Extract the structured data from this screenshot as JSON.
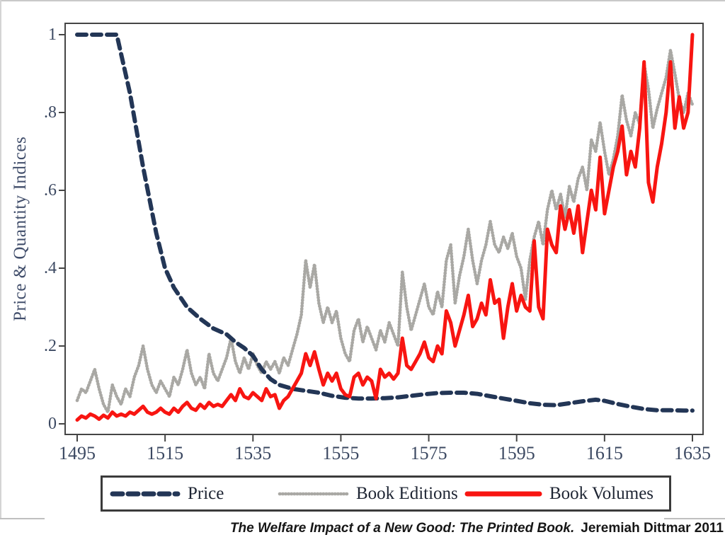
{
  "page": {
    "caption": {
      "title": "The Welfare Impact of a New Good: The Printed Book.",
      "credit": "Jeremiah Dittmar 2011"
    }
  },
  "chart_data": {
    "type": "line",
    "title": "",
    "xlabel": "",
    "ylabel": "Price & Quantity Indices",
    "x_ticks": [
      1495,
      1515,
      1535,
      1555,
      1575,
      1595,
      1615,
      1635
    ],
    "x_tick_labels": [
      "1495",
      "1515",
      "1535",
      "1555",
      "1575",
      "1595",
      "1615",
      "1635"
    ],
    "y_ticks": [
      0,
      0.2,
      0.4,
      0.6,
      0.8,
      1
    ],
    "y_tick_labels": [
      "0",
      ".2",
      ".4",
      ".6",
      ".8",
      "1"
    ],
    "xlim": [
      1495,
      1635
    ],
    "ylim": [
      0,
      1
    ],
    "grid": false,
    "legend_position": "bottom",
    "colors": {
      "price": "#233656",
      "editions": "#a9a8a4",
      "volumes": "#f81511",
      "axis": "#454545",
      "tick_text": "#3c4962"
    },
    "series": [
      {
        "name": "Price",
        "style": "dashed",
        "color": "#233656",
        "x": [
          1495,
          1504,
          1507,
          1510,
          1513,
          1515,
          1517,
          1520,
          1523,
          1526,
          1529,
          1531,
          1533,
          1535,
          1537,
          1539,
          1541,
          1544,
          1547,
          1550,
          1553,
          1556,
          1559,
          1562,
          1565,
          1568,
          1571,
          1574,
          1577,
          1580,
          1583,
          1586,
          1589,
          1592,
          1595,
          1598,
          1601,
          1604,
          1607,
          1610,
          1613,
          1615,
          1618,
          1621,
          1624,
          1627,
          1630,
          1633,
          1635
        ],
        "values": [
          1.0,
          1.0,
          0.85,
          0.66,
          0.49,
          0.4,
          0.35,
          0.3,
          0.27,
          0.245,
          0.23,
          0.21,
          0.195,
          0.175,
          0.14,
          0.115,
          0.1,
          0.09,
          0.085,
          0.08,
          0.072,
          0.067,
          0.065,
          0.065,
          0.066,
          0.068,
          0.072,
          0.076,
          0.079,
          0.08,
          0.08,
          0.077,
          0.071,
          0.065,
          0.059,
          0.053,
          0.049,
          0.048,
          0.053,
          0.058,
          0.062,
          0.059,
          0.051,
          0.044,
          0.038,
          0.035,
          0.035,
          0.034,
          0.034
        ]
      },
      {
        "name": "Book Editions",
        "style": "dotted",
        "color": "#a9a8a4",
        "x_start": 1495,
        "x_step": 1,
        "values": [
          0.06,
          0.09,
          0.08,
          0.11,
          0.14,
          0.09,
          0.05,
          0.03,
          0.1,
          0.07,
          0.05,
          0.09,
          0.07,
          0.12,
          0.15,
          0.2,
          0.14,
          0.1,
          0.08,
          0.11,
          0.09,
          0.07,
          0.12,
          0.1,
          0.14,
          0.19,
          0.13,
          0.1,
          0.12,
          0.09,
          0.18,
          0.13,
          0.11,
          0.14,
          0.17,
          0.22,
          0.16,
          0.13,
          0.17,
          0.14,
          0.18,
          0.15,
          0.13,
          0.16,
          0.14,
          0.16,
          0.13,
          0.17,
          0.15,
          0.19,
          0.23,
          0.28,
          0.42,
          0.35,
          0.41,
          0.31,
          0.26,
          0.3,
          0.26,
          0.29,
          0.22,
          0.18,
          0.16,
          0.24,
          0.27,
          0.21,
          0.25,
          0.22,
          0.19,
          0.24,
          0.21,
          0.26,
          0.23,
          0.2,
          0.39,
          0.3,
          0.24,
          0.28,
          0.32,
          0.36,
          0.3,
          0.28,
          0.34,
          0.3,
          0.42,
          0.46,
          0.31,
          0.38,
          0.43,
          0.5,
          0.42,
          0.36,
          0.42,
          0.46,
          0.52,
          0.46,
          0.44,
          0.48,
          0.45,
          0.49,
          0.43,
          0.4,
          0.32,
          0.42,
          0.48,
          0.52,
          0.46,
          0.55,
          0.6,
          0.55,
          0.59,
          0.53,
          0.61,
          0.57,
          0.63,
          0.66,
          0.6,
          0.73,
          0.7,
          0.775,
          0.7,
          0.64,
          0.68,
          0.74,
          0.845,
          0.78,
          0.74,
          0.8,
          0.77,
          0.925,
          0.86,
          0.76,
          0.81,
          0.85,
          0.89,
          0.96,
          0.9,
          0.835,
          0.8,
          0.85,
          0.82
        ]
      },
      {
        "name": "Book Volumes",
        "style": "solid",
        "color": "#f81511",
        "x_start": 1495,
        "x_step": 1,
        "values": [
          0.01,
          0.02,
          0.015,
          0.025,
          0.02,
          0.012,
          0.022,
          0.015,
          0.03,
          0.02,
          0.025,
          0.02,
          0.03,
          0.025,
          0.035,
          0.045,
          0.03,
          0.025,
          0.03,
          0.04,
          0.03,
          0.025,
          0.04,
          0.03,
          0.045,
          0.055,
          0.04,
          0.035,
          0.05,
          0.04,
          0.055,
          0.045,
          0.05,
          0.045,
          0.06,
          0.075,
          0.06,
          0.09,
          0.07,
          0.065,
          0.08,
          0.07,
          0.06,
          0.09,
          0.07,
          0.075,
          0.04,
          0.06,
          0.07,
          0.09,
          0.11,
          0.13,
          0.18,
          0.15,
          0.185,
          0.14,
          0.1,
          0.13,
          0.11,
          0.13,
          0.09,
          0.075,
          0.07,
          0.12,
          0.13,
          0.1,
          0.12,
          0.11,
          0.065,
          0.14,
          0.12,
          0.13,
          0.115,
          0.13,
          0.22,
          0.15,
          0.14,
          0.16,
          0.18,
          0.21,
          0.17,
          0.16,
          0.2,
          0.18,
          0.29,
          0.26,
          0.2,
          0.24,
          0.28,
          0.33,
          0.25,
          0.27,
          0.31,
          0.28,
          0.37,
          0.31,
          0.32,
          0.22,
          0.3,
          0.36,
          0.29,
          0.33,
          0.3,
          0.29,
          0.47,
          0.3,
          0.27,
          0.5,
          0.46,
          0.44,
          0.56,
          0.5,
          0.55,
          0.49,
          0.56,
          0.44,
          0.52,
          0.6,
          0.55,
          0.685,
          0.54,
          0.6,
          0.66,
          0.7,
          0.765,
          0.64,
          0.7,
          0.66,
          0.76,
          0.93,
          0.62,
          0.57,
          0.66,
          0.72,
          0.8,
          0.93,
          0.76,
          0.84,
          0.76,
          0.8,
          1.0
        ]
      }
    ]
  }
}
